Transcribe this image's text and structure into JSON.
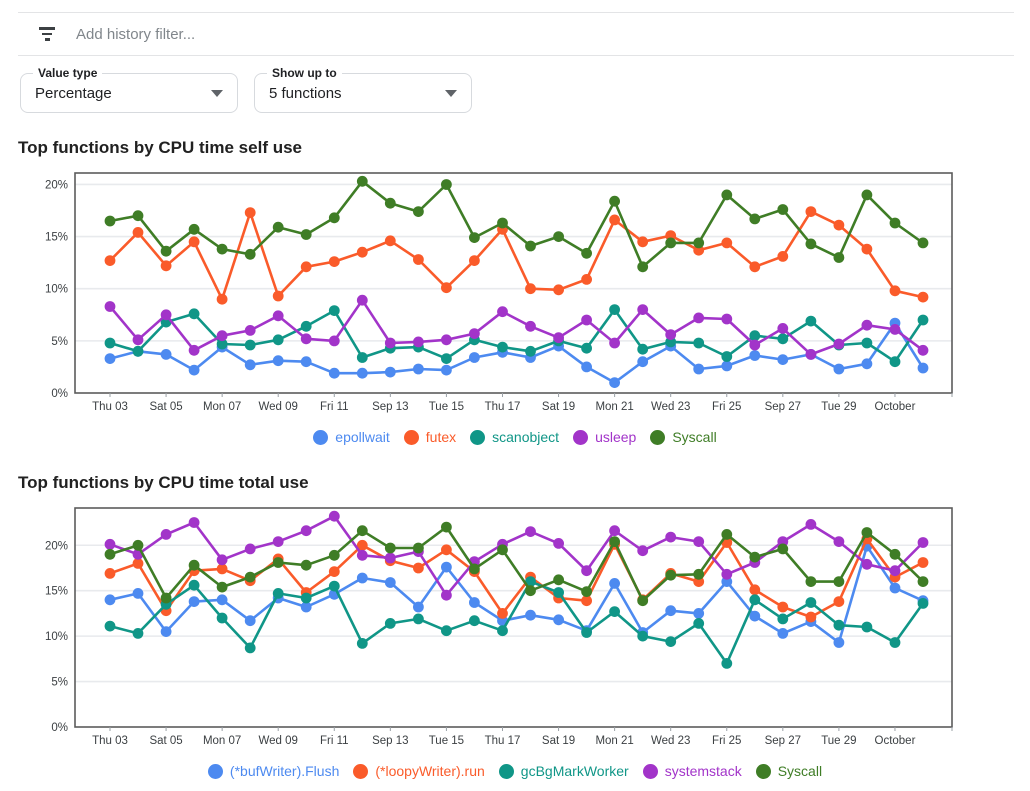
{
  "filter_bar": {
    "icon": "filter-list-icon",
    "placeholder": "Add history filter..."
  },
  "controls": {
    "value_type": {
      "label": "Value type",
      "value": "Percentage"
    },
    "show_up_to": {
      "label": "Show up to",
      "value": "5 functions"
    }
  },
  "chart_data": [
    {
      "type": "line",
      "title": "Top functions by CPU time self use",
      "x_labels": [
        "Thu 03",
        "Sat 05",
        "Mon 07",
        "Wed 09",
        "Fri 11",
        "Sep 13",
        "Tue 15",
        "Thu 17",
        "Sat 19",
        "Mon 21",
        "Wed 23",
        "Fri 25",
        "Sep 27",
        "Tue 29",
        "October"
      ],
      "yticks": [
        0,
        5,
        10,
        15,
        20
      ],
      "ytick_labels": [
        "0%",
        "5%",
        "10%",
        "15%",
        "20%"
      ],
      "ylim": [
        0,
        21.1
      ],
      "grid": true,
      "legend_position": "bottom",
      "series": [
        {
          "name": "epollwait",
          "color": "#4d8af0",
          "values": [
            3.3,
            4.0,
            3.7,
            2.2,
            4.4,
            2.7,
            3.1,
            3.0,
            1.9,
            1.9,
            2.0,
            2.3,
            2.2,
            3.4,
            3.9,
            3.4,
            4.5,
            2.5,
            1.0,
            3.0,
            4.5,
            2.3,
            2.6,
            3.6,
            3.2,
            3.7,
            2.3,
            2.8,
            6.7,
            2.4
          ]
        },
        {
          "name": "futex",
          "color": "#fa5b2a",
          "values": [
            12.7,
            15.4,
            12.2,
            14.5,
            9.0,
            17.3,
            9.3,
            12.1,
            12.6,
            13.5,
            14.6,
            12.8,
            10.1,
            12.7,
            15.7,
            10.0,
            9.9,
            10.9,
            16.6,
            14.5,
            15.1,
            13.7,
            14.4,
            12.1,
            13.1,
            17.4,
            16.1,
            13.8,
            9.8,
            9.2
          ]
        },
        {
          "name": "scanobject",
          "color": "#109687",
          "values": [
            4.8,
            4.0,
            6.8,
            7.6,
            4.7,
            4.6,
            5.1,
            6.4,
            7.9,
            3.4,
            4.3,
            4.4,
            3.3,
            5.1,
            4.4,
            4.0,
            5.0,
            4.3,
            8.0,
            4.2,
            4.9,
            4.8,
            3.5,
            5.5,
            5.2,
            6.9,
            4.6,
            4.8,
            3.0,
            7.0
          ]
        },
        {
          "name": "usleep",
          "color": "#a234c9",
          "values": [
            8.3,
            5.1,
            7.5,
            4.1,
            5.5,
            6.0,
            7.4,
            5.2,
            5.0,
            8.9,
            4.8,
            4.9,
            5.1,
            5.7,
            7.8,
            6.4,
            5.3,
            7.0,
            4.8,
            8.0,
            5.6,
            7.2,
            7.1,
            4.6,
            6.2,
            3.7,
            4.7,
            6.5,
            6.1,
            4.1
          ]
        },
        {
          "name": "Syscall",
          "color": "#3f7d26",
          "values": [
            16.5,
            17.0,
            13.6,
            15.7,
            13.8,
            13.3,
            15.9,
            15.2,
            16.8,
            20.3,
            18.2,
            17.4,
            20.0,
            14.9,
            16.3,
            14.1,
            15.0,
            13.4,
            18.4,
            12.1,
            14.4,
            14.4,
            19.0,
            16.7,
            17.6,
            14.3,
            13.0,
            19.0,
            16.3,
            14.4
          ]
        }
      ]
    },
    {
      "type": "line",
      "title": "Top functions by CPU time total use",
      "x_labels": [
        "Thu 03",
        "Sat 05",
        "Mon 07",
        "Wed 09",
        "Fri 11",
        "Sep 13",
        "Tue 15",
        "Thu 17",
        "Sat 19",
        "Mon 21",
        "Wed 23",
        "Fri 25",
        "Sep 27",
        "Tue 29",
        "October"
      ],
      "yticks": [
        0,
        5,
        10,
        15,
        20
      ],
      "ytick_labels": [
        "0%",
        "5%",
        "10%",
        "15%",
        "20%"
      ],
      "ylim": [
        0,
        24.1
      ],
      "grid": true,
      "legend_position": "bottom",
      "series": [
        {
          "name": "(*bufWriter).Flush",
          "color": "#4d8af0",
          "values": [
            14.0,
            14.7,
            10.5,
            13.8,
            14.0,
            11.7,
            14.2,
            13.2,
            14.6,
            16.4,
            15.9,
            13.2,
            17.6,
            13.7,
            11.7,
            12.3,
            11.8,
            10.6,
            15.8,
            10.4,
            12.8,
            12.5,
            16.0,
            12.2,
            10.3,
            11.6,
            9.3,
            19.9,
            15.3,
            13.9
          ]
        },
        {
          "name": "(*loopyWriter).run",
          "color": "#fa5b2a",
          "values": [
            16.9,
            18.0,
            12.8,
            17.2,
            17.4,
            16.1,
            18.5,
            14.8,
            17.1,
            20.0,
            18.3,
            17.5,
            19.5,
            17.1,
            12.5,
            16.5,
            14.2,
            13.9,
            20.1,
            14.0,
            16.9,
            16.0,
            20.3,
            15.1,
            13.2,
            12.1,
            13.8,
            20.7,
            16.5,
            18.1
          ]
        },
        {
          "name": "gcBgMarkWorker",
          "color": "#109687",
          "values": [
            11.1,
            10.3,
            13.5,
            15.6,
            12.0,
            8.7,
            14.7,
            14.2,
            15.5,
            9.2,
            11.4,
            11.9,
            10.6,
            11.7,
            10.6,
            16.0,
            14.8,
            10.4,
            12.7,
            10.0,
            9.4,
            11.4,
            7.0,
            14.0,
            11.9,
            13.7,
            11.2,
            11.0,
            9.3,
            13.6
          ]
        },
        {
          "name": "systemstack",
          "color": "#a234c9",
          "values": [
            20.1,
            19.0,
            21.2,
            22.5,
            18.4,
            19.6,
            20.4,
            21.6,
            23.2,
            18.9,
            18.6,
            19.3,
            14.5,
            18.2,
            20.1,
            21.5,
            20.2,
            17.2,
            21.6,
            19.4,
            20.9,
            20.4,
            16.8,
            18.1,
            20.4,
            22.3,
            20.4,
            17.9,
            17.2,
            20.3
          ]
        },
        {
          "name": "Syscall",
          "color": "#3f7d26",
          "values": [
            19.0,
            20.0,
            14.2,
            17.8,
            15.4,
            16.5,
            18.1,
            17.8,
            18.9,
            21.6,
            19.7,
            19.7,
            22.0,
            17.4,
            19.5,
            15.0,
            16.2,
            14.9,
            20.4,
            13.9,
            16.7,
            16.8,
            21.2,
            18.7,
            19.6,
            16.0,
            16.0,
            21.4,
            19.0,
            16.0
          ]
        }
      ]
    }
  ],
  "chart_style": {
    "grid_color": "#e8eaed",
    "border_color": "#5c5c5c",
    "tick_color": "#9aa0a6",
    "axis_label_color": "#3c4043"
  }
}
